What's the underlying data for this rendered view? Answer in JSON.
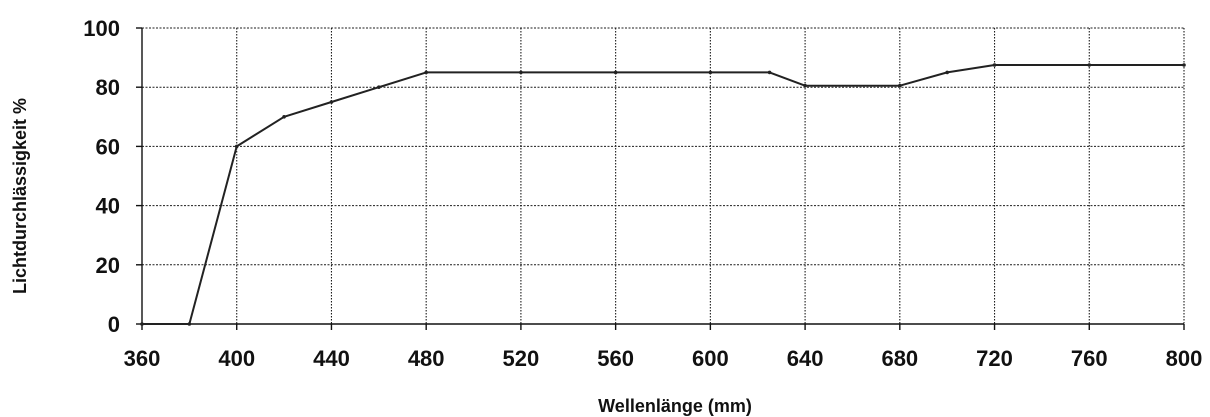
{
  "chart_data": {
    "type": "line",
    "xlabel": "Wellenlänge (mm)",
    "ylabel": "Lichtdurchlässigkeit %",
    "xlim": [
      360,
      800
    ],
    "ylim": [
      0,
      100
    ],
    "xticks": [
      360,
      400,
      440,
      480,
      520,
      560,
      600,
      640,
      680,
      720,
      760,
      800
    ],
    "yticks": [
      0,
      20,
      40,
      60,
      80,
      100
    ],
    "grid": true,
    "series": [
      {
        "x": [
          360,
          380,
          400,
          420,
          440,
          460,
          480,
          520,
          560,
          600,
          625,
          640,
          680,
          700,
          720,
          760,
          800
        ],
        "y": [
          0,
          0,
          60,
          70,
          75,
          80,
          85,
          85,
          85,
          85,
          85,
          80.5,
          80.5,
          85,
          87.5,
          87.5,
          87.5
        ],
        "color": "#222222"
      }
    ]
  }
}
